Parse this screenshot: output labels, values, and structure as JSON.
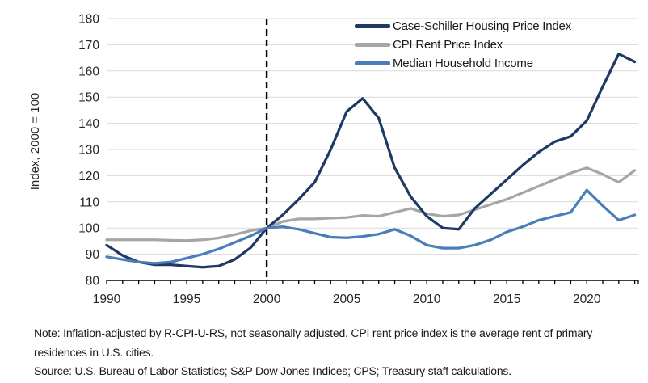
{
  "chart_data": {
    "type": "line",
    "title": "",
    "ylabel": "Index, 2000 = 100",
    "ylim": [
      80,
      180
    ],
    "yticks": [
      80,
      90,
      100,
      110,
      120,
      130,
      140,
      150,
      160,
      170,
      180
    ],
    "xticks": [
      1990,
      1995,
      2000,
      2005,
      2010,
      2015,
      2020
    ],
    "x": [
      1990,
      1991,
      1992,
      1993,
      1994,
      1995,
      1996,
      1997,
      1998,
      1999,
      2000,
      2001,
      2002,
      2003,
      2004,
      2005,
      2006,
      2007,
      2008,
      2009,
      2010,
      2011,
      2012,
      2013,
      2014,
      2015,
      2016,
      2017,
      2018,
      2019,
      2020,
      2021,
      2022,
      2023
    ],
    "vline_x": 2000,
    "grid": true,
    "legend_position": "top-right",
    "series": [
      {
        "name": "Case-Schiller Housing Price Index",
        "slug": "case-schiller",
        "color": "#1f3864",
        "values": [
          93.5,
          89.5,
          87,
          86,
          86,
          85.5,
          85,
          85.5,
          88,
          92.5,
          100,
          105,
          111,
          117.5,
          130,
          144.5,
          149.5,
          142,
          123,
          112,
          104.5,
          100,
          99.5,
          107.5,
          113,
          118.5,
          124,
          129,
          133,
          135,
          141,
          154,
          166.5,
          163.5
        ]
      },
      {
        "name": "CPI Rent Price Index",
        "slug": "cpi-rent",
        "color": "#a6a6a6",
        "values": [
          95.5,
          95.5,
          95.5,
          95.5,
          95.3,
          95.2,
          95.5,
          96.2,
          97.5,
          99,
          100,
          102.5,
          103.5,
          103.5,
          103.8,
          104,
          104.8,
          104.5,
          106,
          107.5,
          105.5,
          104.5,
          105,
          107,
          109,
          111,
          113.5,
          116,
          118.5,
          121,
          123,
          120.5,
          117.5,
          122
        ]
      },
      {
        "name": "Median Household Income",
        "slug": "median-income",
        "color": "#4a7ebb",
        "values": [
          89,
          88,
          87,
          86.5,
          87,
          88.5,
          90,
          92,
          94.5,
          97,
          100,
          100.5,
          99.5,
          98,
          96.5,
          96.3,
          96.8,
          97.7,
          99.5,
          97,
          93.5,
          92.3,
          92.3,
          93.5,
          95.5,
          98.5,
          100.5,
          103,
          104.5,
          106,
          114.5,
          108.5,
          103,
          105
        ]
      }
    ],
    "colors": {
      "grid": "#d9d9d9",
      "axis": "#000000",
      "vline": "#000000",
      "tick_label": "#262626"
    }
  },
  "notes": {
    "note": "Note: Inflation-adjusted by R-CPI-U-RS, not seasonally adjusted. CPI rent price index is the average rent of primary residences in U.S. cities.",
    "source": "Source: U.S. Bureau of Labor Statistics; S&P Dow Jones Indices; CPS; Treasury staff calculations."
  }
}
